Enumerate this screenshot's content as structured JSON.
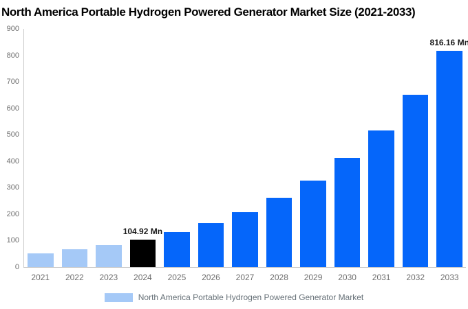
{
  "title": "North America Portable Hydrogen Powered Generator Market Size (2021-2033)",
  "chart_data": {
    "type": "bar",
    "title": "North America Portable Hydrogen Powered Generator Market Size (2021-2033)",
    "categories": [
      "2021",
      "2022",
      "2023",
      "2024",
      "2025",
      "2026",
      "2027",
      "2028",
      "2029",
      "2030",
      "2031",
      "2032",
      "2033"
    ],
    "values": [
      52.9,
      66.5,
      83.5,
      104.92,
      131.8,
      165.5,
      207.9,
      261.1,
      328.0,
      411.9,
      517.4,
      649.8,
      816.16
    ],
    "bar_colors": [
      "#a5c9f7",
      "#a5c9f7",
      "#a5c9f7",
      "#000000",
      "#0566fa",
      "#0566fa",
      "#0566fa",
      "#0566fa",
      "#0566fa",
      "#0566fa",
      "#0566fa",
      "#0566fa",
      "#0566fa"
    ],
    "data_labels": [
      null,
      null,
      null,
      "104.92 Mn",
      null,
      null,
      null,
      null,
      null,
      null,
      null,
      null,
      "816.16 Mn"
    ],
    "xlabel": "",
    "ylabel": "",
    "ylim": [
      0,
      900
    ],
    "ytick_interval": 100,
    "grid": false,
    "legend": {
      "label": "North America Portable Hydrogen Powered Generator Market",
      "swatch_color": "#a5c9f7",
      "position": "bottom-center"
    }
  },
  "colors": {
    "background": "#ffffff",
    "title_text": "#000000",
    "axis_line": "#cccccc",
    "tick_text": "#6e6e6e",
    "data_label_text": "#1a1a1a",
    "light_blue": "#a5c9f7",
    "primary_blue": "#0566fa",
    "highlight_black": "#000000",
    "legend_text": "#667077"
  }
}
